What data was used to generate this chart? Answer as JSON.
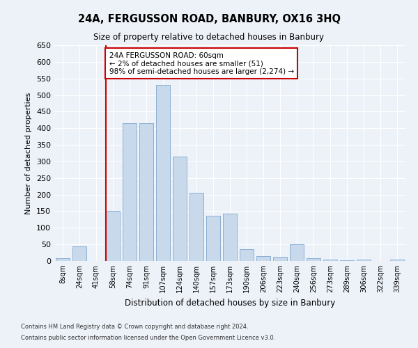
{
  "title": "24A, FERGUSSON ROAD, BANBURY, OX16 3HQ",
  "subtitle": "Size of property relative to detached houses in Banbury",
  "xlabel": "Distribution of detached houses by size in Banbury",
  "ylabel": "Number of detached properties",
  "bar_color": "#c9d9ec",
  "bar_edge_color": "#8aafd4",
  "categories": [
    "8sqm",
    "24sqm",
    "41sqm",
    "58sqm",
    "74sqm",
    "91sqm",
    "107sqm",
    "124sqm",
    "140sqm",
    "157sqm",
    "173sqm",
    "190sqm",
    "206sqm",
    "223sqm",
    "240sqm",
    "256sqm",
    "273sqm",
    "289sqm",
    "306sqm",
    "322sqm",
    "339sqm"
  ],
  "values": [
    8,
    44,
    0,
    150,
    415,
    416,
    530,
    315,
    205,
    137,
    142,
    35,
    15,
    13,
    50,
    8,
    5,
    3,
    5,
    1,
    5
  ],
  "ylim": [
    0,
    650
  ],
  "yticks": [
    0,
    50,
    100,
    150,
    200,
    250,
    300,
    350,
    400,
    450,
    500,
    550,
    600,
    650
  ],
  "vline_bar_index": 3,
  "vline_color": "#cc0000",
  "annotation_text": "24A FERGUSSON ROAD: 60sqm\n← 2% of detached houses are smaller (51)\n98% of semi-detached houses are larger (2,274) →",
  "annotation_box_color": "#ffffff",
  "annotation_box_edge": "#cc0000",
  "footer1": "Contains HM Land Registry data © Crown copyright and database right 2024.",
  "footer2": "Contains public sector information licensed under the Open Government Licence v3.0.",
  "background_color": "#edf2f9",
  "plot_bg_color": "#edf2f9"
}
